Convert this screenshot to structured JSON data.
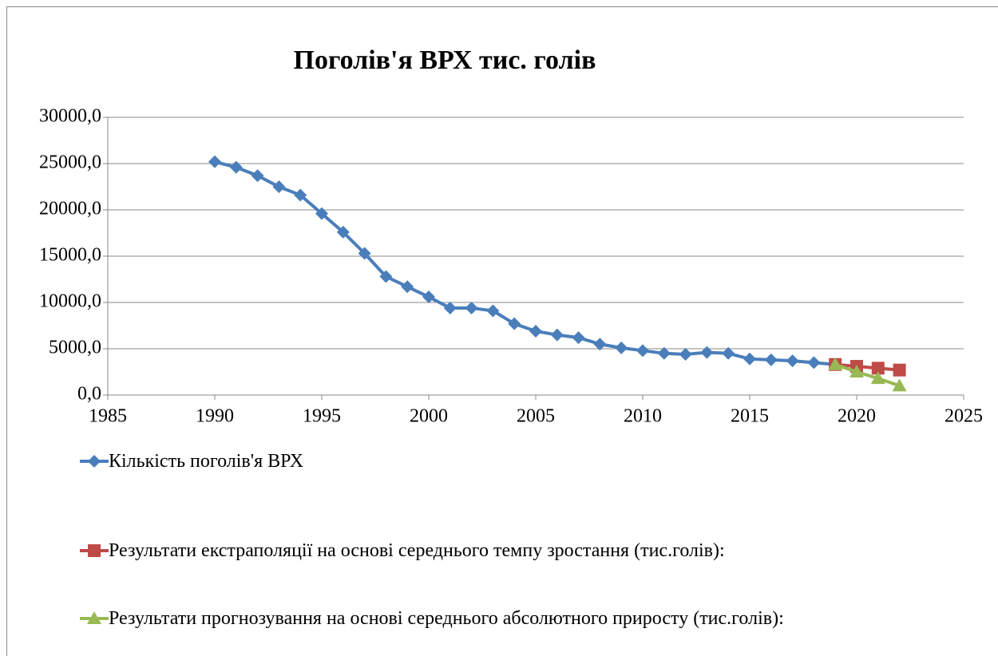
{
  "chart_data": {
    "type": "line",
    "title": "Поголів'я ВРХ тис. голів",
    "series": [
      {
        "name": "Кількість поголів'я ВРХ",
        "color": "#4a7ebb",
        "marker": "diamond",
        "x": [
          1990,
          1991,
          1992,
          1993,
          1994,
          1995,
          1996,
          1997,
          1998,
          1999,
          2000,
          2001,
          2002,
          2003,
          2004,
          2005,
          2006,
          2007,
          2008,
          2009,
          2010,
          2011,
          2012,
          2013,
          2014,
          2015,
          2016,
          2017,
          2018,
          2019
        ],
        "values": [
          25200,
          24600,
          23700,
          22500,
          21600,
          19600,
          17600,
          15300,
          12800,
          11700,
          10600,
          9400,
          9400,
          9100,
          7700,
          6900,
          6500,
          6200,
          5500,
          5100,
          4800,
          4500,
          4400,
          4600,
          4500,
          3900,
          3800,
          3700,
          3500,
          3300
        ]
      },
      {
        "name": "Результати екстраполяції на основі середнього темпу зростання (тис.голів):",
        "color": "#be4b48",
        "marker": "square",
        "x": [
          2019,
          2020,
          2021,
          2022
        ],
        "values": [
          3300,
          3100,
          2900,
          2700
        ]
      },
      {
        "name": "Результати прогнозування на основі середнього абсолютного приросту (тис.голів):",
        "color": "#98b954",
        "marker": "triangle",
        "x": [
          2019,
          2020,
          2021,
          2022
        ],
        "values": [
          3300,
          2500,
          1800,
          1000
        ]
      }
    ],
    "xlim": [
      1985,
      2025
    ],
    "xticks": [
      1985,
      1990,
      1995,
      2000,
      2005,
      2010,
      2015,
      2020,
      2025
    ],
    "ylim": [
      0,
      30000
    ],
    "yticks": [
      {
        "value": 0,
        "label": "0,0"
      },
      {
        "value": 5000,
        "label": "5000,0"
      },
      {
        "value": 10000,
        "label": "10000,0"
      },
      {
        "value": 15000,
        "label": "15000,0"
      },
      {
        "value": 20000,
        "label": "20000,0"
      },
      {
        "value": 25000,
        "label": "25000,0"
      },
      {
        "value": 30000,
        "label": "30000,0"
      }
    ],
    "grid": true,
    "legend": "bottom"
  }
}
